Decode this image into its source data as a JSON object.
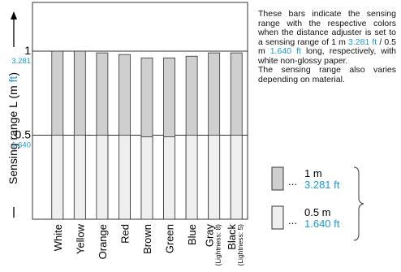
{
  "chart_data": {
    "type": "bar",
    "ylabel": [
      "Sensing range L (m ",
      "ft",
      ")"
    ],
    "categories": [
      "White",
      "Yellow",
      "Orange",
      "Red",
      "Brown",
      "Green",
      "Blue",
      "Gray\n(Lightness: 8)",
      "Black\n(Lightness: 5)"
    ],
    "series": [
      {
        "name": "1 m",
        "name_ft": "3.281 ft",
        "color": "#cfcfcf",
        "values": [
          1.0,
          1.0,
          0.99,
          0.98,
          0.96,
          0.96,
          0.97,
          0.99,
          0.99
        ]
      },
      {
        "name": "0.5 m",
        "name_ft": "1.640 ft",
        "color": "#efefef",
        "values": [
          0.5,
          0.5,
          0.5,
          0.5,
          0.49,
          0.49,
          0.5,
          0.5,
          0.5
        ]
      }
    ],
    "ylim": [
      0,
      1.29
    ],
    "yticks": [
      0.5,
      1
    ],
    "ytick_ft_labels": [
      "1.640",
      "3.281"
    ],
    "highlight_color": "#1a9ad6",
    "legend_marker": "...",
    "description": [
      "These bars indicate the sensing range with the respective colors when the distance adjuster is set to a sensing range of 1 m ",
      "3.281 ft",
      " / 0.5 m ",
      "1.640 ft",
      " long, respectively, with white non-glossy paper."
    ],
    "note": "The sensing range also varies depending on material."
  }
}
